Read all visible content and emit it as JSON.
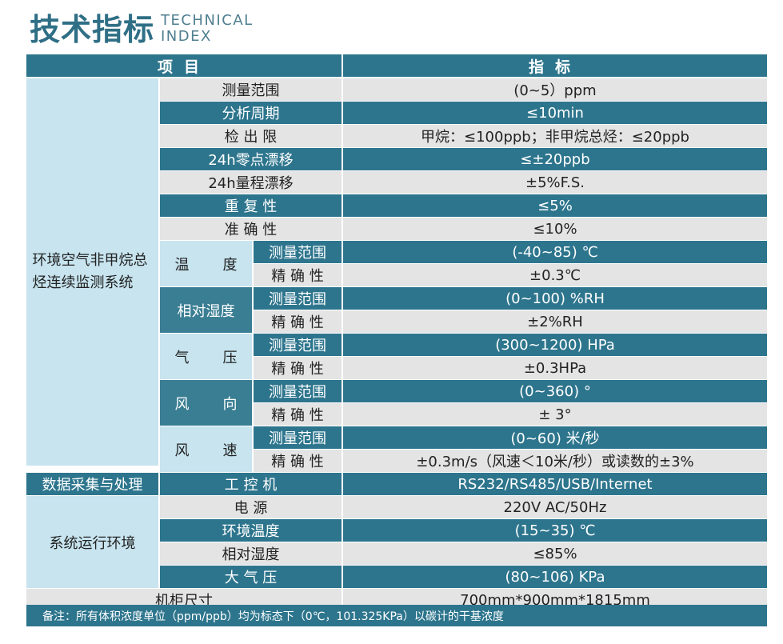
{
  "title": {
    "cn": "技术指标",
    "en_line1": "TECHNICAL",
    "en_line2": "INDEX"
  },
  "header": {
    "item": "项目",
    "spec": "指标"
  },
  "sections": {
    "monitoring": "环境空气非甲烷总烃连续监测系统",
    "data": "数据采集与处理",
    "env": "系统运行环境",
    "cabinet": "机柜尺寸"
  },
  "groups": {
    "temp": "温度",
    "humidity": "相对湿度",
    "pressure": "气压",
    "wind_dir": "风向",
    "wind_speed": "风速"
  },
  "rows": [
    {
      "item": "测量范围",
      "value": "(0~5）ppm"
    },
    {
      "item": "分析周期",
      "value": "≤10min"
    },
    {
      "item": "检 出 限",
      "value": "甲烷：≤100ppb；非甲烷总烃：≤20ppb"
    },
    {
      "item": "24h零点漂移",
      "value": "≤±20ppb"
    },
    {
      "item": "24h量程漂移",
      "value": "±5%F.S."
    },
    {
      "item": "重 复 性",
      "value": "≤5%"
    },
    {
      "item": "准 确 性",
      "value": "≤10%"
    },
    {
      "item": "测量范围",
      "value": "(-40~85) ℃"
    },
    {
      "item": "精 确 性",
      "value": "±0.3℃"
    },
    {
      "item": "测量范围",
      "value": "(0~100) %RH"
    },
    {
      "item": "精 确 性",
      "value": "±2%RH"
    },
    {
      "item": "测量范围",
      "value": "(300~1200) HPa"
    },
    {
      "item": "精 确 性",
      "value": "±0.3HPa"
    },
    {
      "item": "测量范围",
      "value": "(0~360) °"
    },
    {
      "item": "精 确 性",
      "value": "± 3°"
    },
    {
      "item": "测量范围",
      "value": "(0~60) 米/秒"
    },
    {
      "item": "精 确 性",
      "value": "±0.3m/s（风速＜10米/秒）或读数的±3%"
    },
    {
      "item": "工 控 机",
      "value": "RS232/RS485/USB/Internet"
    },
    {
      "item": "电 源",
      "value": "220V AC/50Hz"
    },
    {
      "item": "环境温度",
      "value": "(15~35) ℃"
    },
    {
      "item": "相对湿度",
      "value": "≤85%"
    },
    {
      "item": "大 气 压",
      "value": "(80~106) KPa"
    },
    {
      "item": "",
      "value": "700mm*900mm*1815mm"
    }
  ],
  "note": "备注：所有体积浓度单位（ppm/ppb）均为标态下（0℃，101.325KPa）以碳计的干基浓度"
}
